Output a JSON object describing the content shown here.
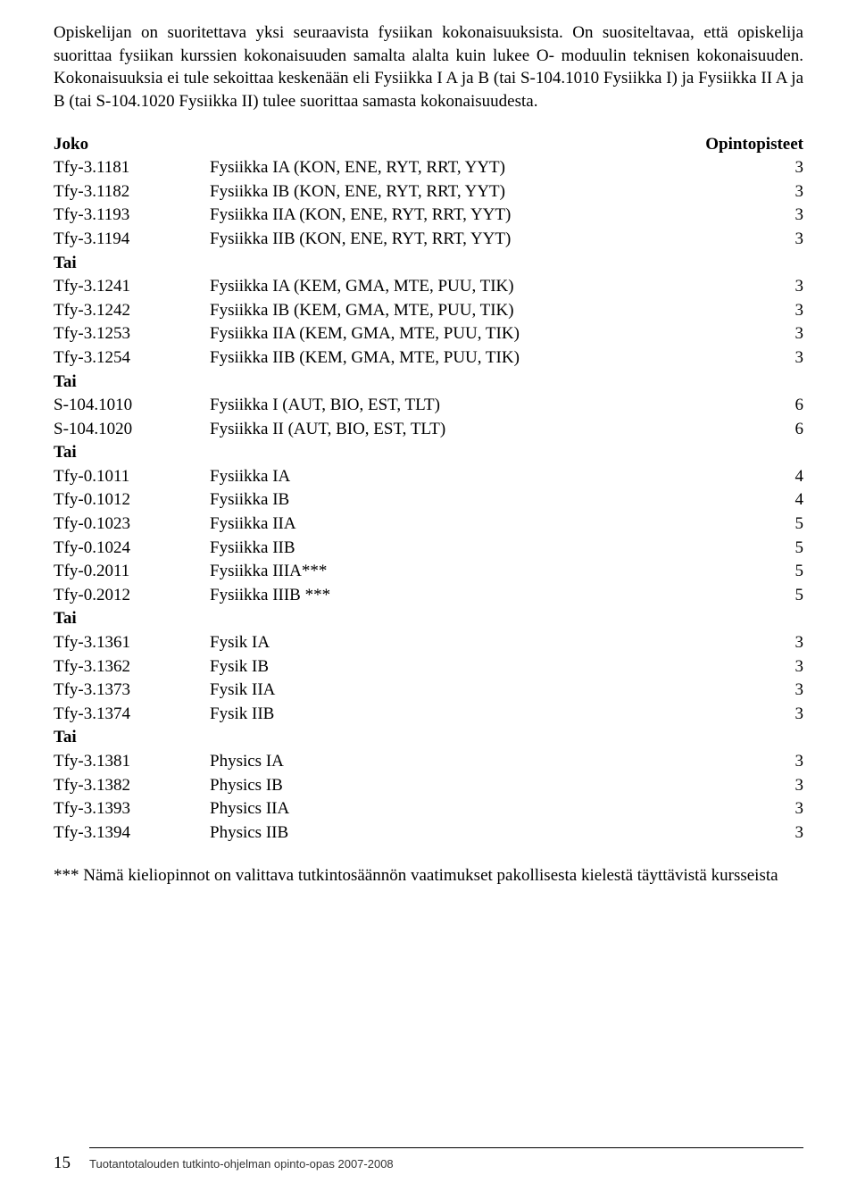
{
  "intro_paragraph": "Opiskelijan on suoritettava yksi seuraavista fysiikan kokonaisuuksista. On suositeltavaa, että opiskelija suorittaa fysiikan kurssien kokonaisuuden samalta alalta kuin lukee O- moduulin teknisen kokonaisuuden. Kokonaisuuksia ei tule sekoittaa keskenään eli Fysiikka I A ja B (tai S-104.1010 Fysiikka I) ja Fysiikka II A ja B (tai S-104.1020 Fysiikka II) tulee suorittaa samasta kokonaisuudesta.",
  "header": {
    "joko": "Joko",
    "opintopisteet": "Opintopisteet"
  },
  "rows": [
    {
      "code": "Tfy-3.1181",
      "name": "Fysiikka IA (KON, ENE, RYT, RRT, YYT)",
      "points": "3",
      "type": "row"
    },
    {
      "code": "Tfy-3.1182",
      "name": "Fysiikka IB (KON, ENE, RYT, RRT, YYT)",
      "points": "3",
      "type": "row"
    },
    {
      "code": "Tfy-3.1193",
      "name": "Fysiikka IIA (KON, ENE, RYT, RRT, YYT)",
      "points": "3",
      "type": "row"
    },
    {
      "code": "Tfy-3.1194",
      "name": "Fysiikka IIB (KON, ENE, RYT, RRT, YYT)",
      "points": "3",
      "type": "row"
    },
    {
      "code": "Tai",
      "name": "",
      "points": "",
      "type": "section"
    },
    {
      "code": "Tfy-3.1241",
      "name": "Fysiikka IA (KEM, GMA, MTE, PUU, TIK)",
      "points": "3",
      "type": "row"
    },
    {
      "code": "Tfy-3.1242",
      "name": "Fysiikka IB (KEM, GMA, MTE, PUU, TIK)",
      "points": "3",
      "type": "row"
    },
    {
      "code": "Tfy-3.1253",
      "name": "Fysiikka IIA (KEM, GMA, MTE, PUU, TIK)",
      "points": "3",
      "type": "row"
    },
    {
      "code": "Tfy-3.1254",
      "name": "Fysiikka IIB (KEM, GMA, MTE, PUU, TIK)",
      "points": "3",
      "type": "row"
    },
    {
      "code": "Tai",
      "name": "",
      "points": "",
      "type": "section"
    },
    {
      "code": "S-104.1010",
      "name": "Fysiikka I (AUT, BIO, EST, TLT)",
      "points": "6",
      "type": "row"
    },
    {
      "code": "S-104.1020",
      "name": "Fysiikka II (AUT, BIO, EST, TLT)",
      "points": "6",
      "type": "row"
    },
    {
      "code": "Tai",
      "name": "",
      "points": "",
      "type": "section"
    },
    {
      "code": "Tfy-0.1011",
      "name": "Fysiikka IA",
      "points": "4",
      "type": "row"
    },
    {
      "code": "Tfy-0.1012",
      "name": "Fysiikka IB",
      "points": "4",
      "type": "row"
    },
    {
      "code": "Tfy-0.1023",
      "name": "Fysiikka IIA",
      "points": "5",
      "type": "row"
    },
    {
      "code": "Tfy-0.1024",
      "name": "Fysiikka IIB",
      "points": "5",
      "type": "row"
    },
    {
      "code": "Tfy-0.2011",
      "name": "Fysiikka IIIA***",
      "points": "5",
      "type": "row"
    },
    {
      "code": "Tfy-0.2012",
      "name": "Fysiikka IIIB ***",
      "points": "5",
      "type": "row"
    },
    {
      "code": "Tai",
      "name": "",
      "points": "",
      "type": "section"
    },
    {
      "code": "Tfy-3.1361",
      "name": "Fysik IA",
      "points": "3",
      "type": "row"
    },
    {
      "code": "Tfy-3.1362",
      "name": "Fysik IB",
      "points": "3",
      "type": "row"
    },
    {
      "code": "Tfy-3.1373",
      "name": "Fysik IIA",
      "points": "3",
      "type": "row"
    },
    {
      "code": "Tfy-3.1374",
      "name": "Fysik IIB",
      "points": "3",
      "type": "row"
    },
    {
      "code": "Tai",
      "name": "",
      "points": "",
      "type": "section"
    },
    {
      "code": "Tfy-3.1381",
      "name": "Physics IA",
      "points": "3",
      "type": "row"
    },
    {
      "code": "Tfy-3.1382",
      "name": "Physics IB",
      "points": "3",
      "type": "row"
    },
    {
      "code": "Tfy-3.1393",
      "name": "Physics IIA",
      "points": "3",
      "type": "row"
    },
    {
      "code": "Tfy-3.1394",
      "name": "Physics IIB",
      "points": "3",
      "type": "row"
    }
  ],
  "footnote": "*** Nämä kieliopinnot on valittava tutkintosäännön vaatimukset pakollisesta kielestä täyttävistä kursseista",
  "footer": {
    "page_number": "15",
    "text": "Tuotantotalouden tutkinto-ohjelman opinto-opas 2007-2008"
  }
}
